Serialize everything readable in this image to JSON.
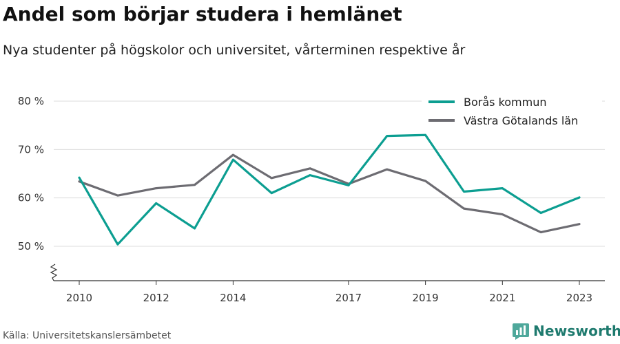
{
  "header": {
    "title": "Andel som börjar studera i hemlänet",
    "subtitle": "Nya studenter på högskolor och universitet, vårterminen respektive år"
  },
  "footer": {
    "source": "Källa: Universitetskanslersämbetet",
    "brand": "Newsworthy"
  },
  "chart_data": {
    "type": "line",
    "title": "Andel som börjar studera i hemlänet",
    "subtitle": "Nya studenter på högskolor och universitet, vårterminen respektive år",
    "xlabel": "",
    "ylabel": "",
    "x": [
      2010,
      2011,
      2012,
      2013,
      2014,
      2015,
      2016,
      2017,
      2018,
      2019,
      2020,
      2021,
      2022,
      2023
    ],
    "x_tick_labels": [
      "2010",
      "2012",
      "2014",
      "2017",
      "2019",
      "2021",
      "2023"
    ],
    "y_tick_labels": [
      "50 %",
      "60 %",
      "70 %",
      "80 %"
    ],
    "y_ticks": [
      50,
      60,
      70,
      80
    ],
    "ylim": [
      43,
      80
    ],
    "y_axis_break": true,
    "grid": true,
    "legend_position": "top-right",
    "series": [
      {
        "name": "Borås kommun",
        "color": "#0c9e91",
        "values": [
          64.2,
          50.4,
          58.9,
          53.7,
          67.9,
          61.0,
          64.7,
          62.6,
          72.8,
          73.0,
          61.3,
          62.0,
          56.9,
          60.1
        ]
      },
      {
        "name": "Västra Götalands län",
        "color": "#6d6c72",
        "values": [
          63.4,
          60.5,
          62.0,
          62.7,
          68.9,
          64.1,
          66.1,
          62.9,
          65.9,
          63.5,
          57.8,
          56.6,
          52.9,
          54.6
        ]
      }
    ]
  }
}
